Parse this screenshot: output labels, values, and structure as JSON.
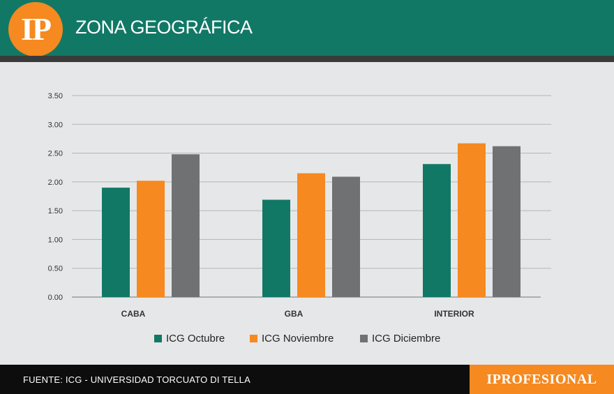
{
  "header": {
    "logo_text": "IP",
    "title": "ZONA GEOGRÁFICA"
  },
  "colors": {
    "header_bg": "#117866",
    "accent": "#f6891f",
    "series": [
      "#117866",
      "#f6891f",
      "#707173"
    ]
  },
  "chart_data": {
    "type": "bar",
    "categories": [
      "CABA",
      "GBA",
      "INTERIOR"
    ],
    "series": [
      {
        "name": "ICG Octubre",
        "values": [
          1.9,
          1.69,
          2.31
        ]
      },
      {
        "name": "ICG Noviembre",
        "values": [
          2.02,
          2.15,
          2.67
        ]
      },
      {
        "name": "ICG Diciembre",
        "values": [
          2.48,
          2.09,
          2.62
        ]
      }
    ],
    "ylim": [
      0,
      3.5
    ],
    "yticks": [
      "0.00",
      "0.50",
      "1.00",
      "1.50",
      "2.00",
      "2.50",
      "3.00",
      "3.50"
    ],
    "grid": true,
    "legend_position": "bottom"
  },
  "footer": {
    "source": "FUENTE: ICG - UNIVERSIDAD TORCUATO DI TELLA",
    "brand": "IPROFESIONAL"
  }
}
